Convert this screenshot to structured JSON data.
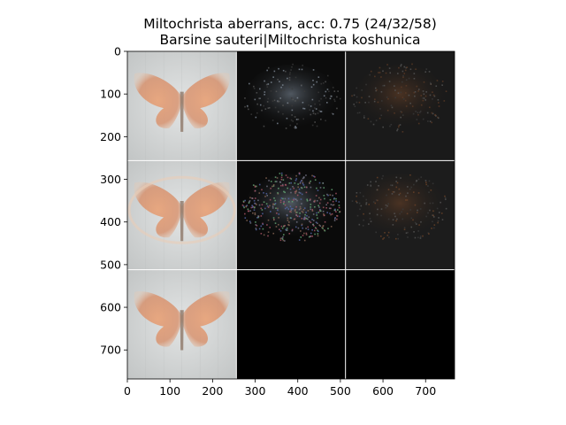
{
  "chart_data": {
    "type": "image-grid",
    "title_line1": "Miltochrista aberrans, acc: 0.75 (24/32/58)",
    "title_line2": "Barsine sauteri|Miltochrista koshunica",
    "grid": {
      "rows": 3,
      "cols": 3,
      "cell_size": 256
    },
    "xlim": [
      0,
      768
    ],
    "ylim": [
      768,
      0
    ],
    "x_ticks": [
      0,
      100,
      200,
      300,
      400,
      500,
      600,
      700
    ],
    "y_ticks": [
      0,
      100,
      200,
      300,
      400,
      500,
      600,
      700
    ],
    "cells": [
      {
        "row": 0,
        "col": 0,
        "kind": "moth-photo",
        "palette": {
          "bg": "#cfd1d1",
          "wing": "#d9936c"
        }
      },
      {
        "row": 0,
        "col": 1,
        "kind": "saliency",
        "palette": {
          "bg": "#0c0c0c",
          "tint": "#7f8a96"
        }
      },
      {
        "row": 0,
        "col": 2,
        "kind": "saliency",
        "palette": {
          "bg": "#1a1a1a",
          "tint": "#5a3a26"
        }
      },
      {
        "row": 1,
        "col": 0,
        "kind": "moth-photo",
        "palette": {
          "bg": "#d2d4d4",
          "wing": "#e0956c"
        }
      },
      {
        "row": 1,
        "col": 1,
        "kind": "saliency-noisy",
        "palette": {
          "bg": "#0a0a0a",
          "tint": "#7a7a88"
        }
      },
      {
        "row": 1,
        "col": 2,
        "kind": "saliency",
        "palette": {
          "bg": "#1c1c1c",
          "tint": "#6a4228"
        }
      },
      {
        "row": 2,
        "col": 0,
        "kind": "moth-photo",
        "palette": {
          "bg": "#cfd1d1",
          "wing": "#dd9a72"
        }
      },
      {
        "row": 2,
        "col": 1,
        "kind": "blank",
        "palette": {
          "bg": "#000000"
        }
      },
      {
        "row": 2,
        "col": 2,
        "kind": "blank",
        "palette": {
          "bg": "#000000"
        }
      }
    ]
  }
}
